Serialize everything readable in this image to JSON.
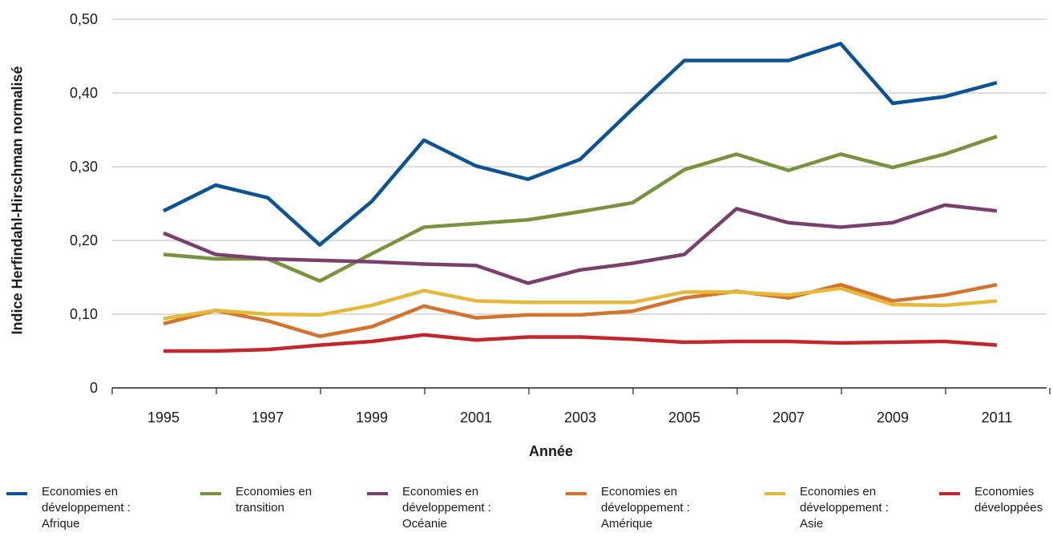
{
  "chart_data": {
    "type": "line",
    "xlabel": "Année",
    "ylabel": "Indice Herfindahl-Hirschman normalisé",
    "ylim": [
      0,
      0.5
    ],
    "y_ticks": [
      "0",
      "0,10",
      "0,20",
      "0,30",
      "0,40",
      "0,50"
    ],
    "x_ticks": [
      "1995",
      "1997",
      "1999",
      "2001",
      "2003",
      "2005",
      "2007",
      "2009",
      "2011"
    ],
    "x": [
      1995,
      1996,
      1997,
      1998,
      1999,
      2000,
      2001,
      2002,
      2003,
      2004,
      2005,
      2006,
      2007,
      2008,
      2009,
      2010,
      2011
    ],
    "grid": "horizontal",
    "legend_position": "bottom",
    "series": [
      {
        "name": "Economies en\ndéveloppement :\nAfrique",
        "color": "#0b5394",
        "values": [
          0.24,
          0.275,
          0.258,
          0.194,
          0.253,
          0.336,
          0.301,
          0.283,
          0.31,
          0.378,
          0.444,
          0.444,
          0.444,
          0.467,
          0.386,
          0.395,
          0.414
        ]
      },
      {
        "name": "Economies en\ntransition",
        "color": "#77933c",
        "values": [
          0.181,
          0.175,
          0.175,
          0.145,
          0.182,
          0.218,
          0.223,
          0.228,
          0.239,
          0.251,
          0.296,
          0.317,
          0.295,
          0.317,
          0.299,
          0.317,
          0.341
        ]
      },
      {
        "name": " Economies en\ndéveloppement :\n Océanie",
        "color": "#7b3f6e",
        "values": [
          0.21,
          0.181,
          0.175,
          0.173,
          0.171,
          0.168,
          0.166,
          0.142,
          0.16,
          0.169,
          0.181,
          0.243,
          0.224,
          0.218,
          0.224,
          0.248,
          0.24
        ]
      },
      {
        "name": "Economies en\ndéveloppement :\n Amérique",
        "color": "#d3732d",
        "values": [
          0.087,
          0.105,
          0.091,
          0.07,
          0.083,
          0.111,
          0.095,
          0.099,
          0.099,
          0.104,
          0.122,
          0.131,
          0.122,
          0.14,
          0.118,
          0.126,
          0.14
        ]
      },
      {
        "name": "Economies en\ndéveloppement :\n Asie",
        "color": "#e6b83a",
        "values": [
          0.094,
          0.105,
          0.1,
          0.099,
          0.112,
          0.132,
          0.118,
          0.116,
          0.116,
          0.116,
          0.13,
          0.13,
          0.126,
          0.135,
          0.113,
          0.112,
          0.118
        ]
      },
      {
        "name": "Economies\ndéveloppées",
        "color": "#c1272d",
        "values": [
          0.05,
          0.05,
          0.052,
          0.058,
          0.063,
          0.072,
          0.065,
          0.069,
          0.069,
          0.066,
          0.062,
          0.063,
          0.063,
          0.061,
          0.062,
          0.063,
          0.058
        ]
      }
    ]
  }
}
